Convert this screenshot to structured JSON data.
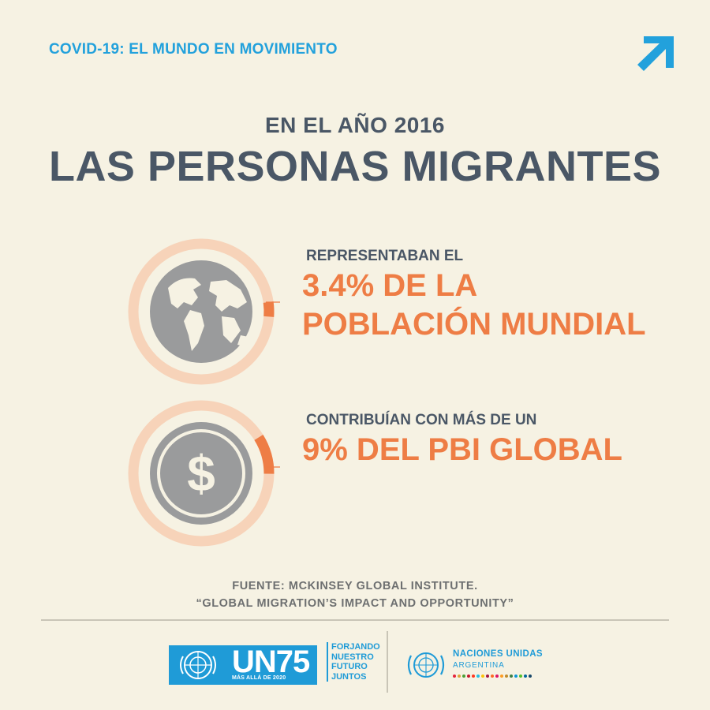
{
  "header": {
    "topline": "COVID-19: EL MUNDO EN MOVIMIENTO",
    "pre_title": "EN EL AÑO 2016",
    "title": "LAS PERSONAS MIGRANTES"
  },
  "stats": [
    {
      "label": "REPRESENTABAN EL",
      "value_line1": "3.4% DE LA",
      "value_line2": "POBLACIÓN MUNDIAL",
      "icon": "globe-icon",
      "fraction": 0.034
    },
    {
      "label": "CONTRIBUÍAN CON MÁS DE UN",
      "value_line1": "9% DEL PBI GLOBAL",
      "icon": "dollar-icon",
      "fraction": 0.09
    }
  ],
  "source": {
    "line1": "FUENTE: MCKINSEY GLOBAL INSTITUTE.",
    "line2": "“GLOBAL MIGRATION’S IMPACT AND OPPORTUNITY”"
  },
  "footer": {
    "un75_text": "UN75",
    "un75_sub": "MÁS ALLÁ DE 2020",
    "slogan": [
      "FORJANDO",
      "NUESTRO",
      "FUTURO",
      "JUNTOS"
    ],
    "org_name": "NACIONES UNIDAS",
    "org_country": "ARGENTINA"
  },
  "colors": {
    "background": "#f6f2e3",
    "title": "#4a5766",
    "accent": "#ee7d45",
    "ring": "#f7d3b9",
    "blue": "#1f9bd7",
    "icon_gray": "#9a9b9c"
  }
}
